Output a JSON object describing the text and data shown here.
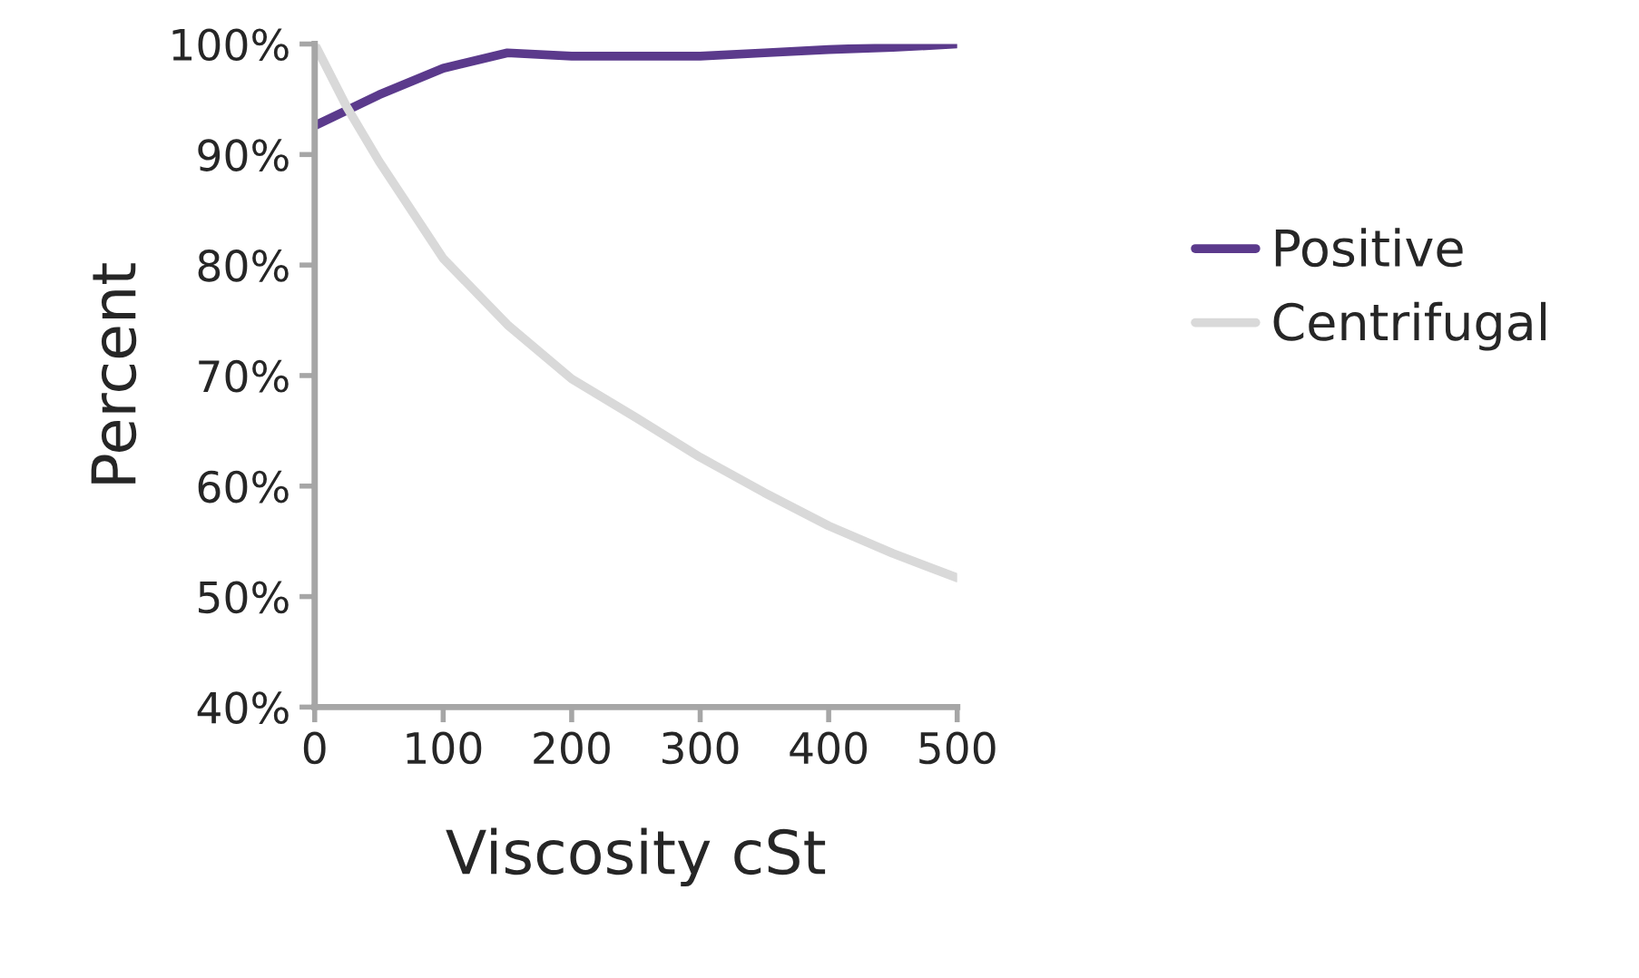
{
  "chart_data": {
    "type": "line",
    "xlabel": "Viscosity cSt",
    "ylabel": "Percent",
    "x": [
      0,
      25,
      50,
      100,
      150,
      200,
      250,
      300,
      350,
      400,
      450,
      500
    ],
    "series": [
      {
        "name": "Positive",
        "color": "#5b3a8c",
        "values": [
          92.6,
          94.0,
          95.4,
          97.8,
          99.2,
          98.9,
          98.9,
          98.9,
          99.2,
          99.5,
          99.7,
          100
        ]
      },
      {
        "name": "Centrifugal",
        "color": "#d9d9d9",
        "values": [
          100,
          94.3,
          89.4,
          80.6,
          74.6,
          69.7,
          66.2,
          62.6,
          59.4,
          56.4,
          53.9,
          51.7
        ]
      }
    ],
    "xlim": [
      0,
      500
    ],
    "xticks": [
      0,
      100,
      200,
      300,
      400,
      500
    ],
    "ylim": [
      40,
      100
    ],
    "yticks": [
      {
        "value": 40,
        "label": "40%"
      },
      {
        "value": 50,
        "label": "50%"
      },
      {
        "value": 60,
        "label": "60%"
      },
      {
        "value": 70,
        "label": "70%"
      },
      {
        "value": 80,
        "label": "80%"
      },
      {
        "value": 90,
        "label": "90%"
      },
      {
        "value": 100,
        "label": "100%"
      }
    ],
    "grid": false,
    "legend": "right",
    "marker": "none",
    "line_style": "solid"
  }
}
